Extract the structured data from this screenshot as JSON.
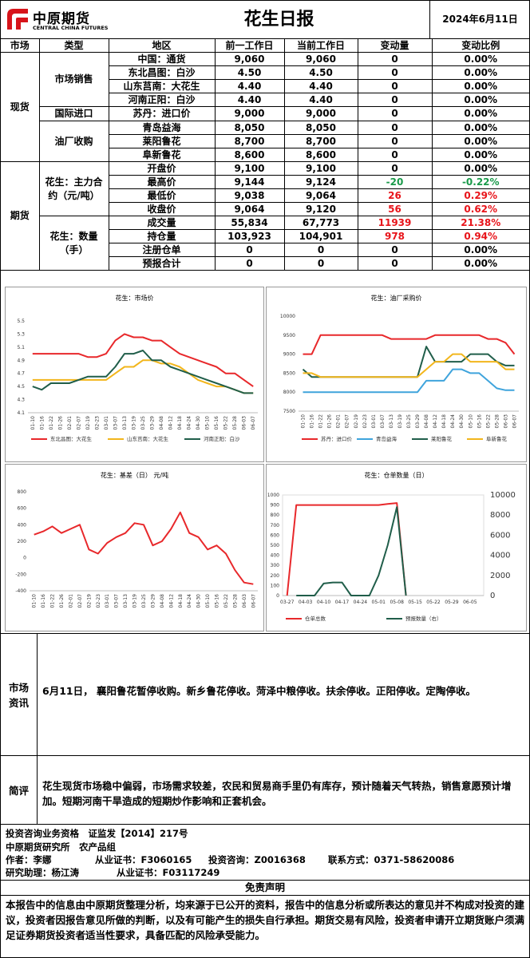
{
  "header": {
    "logo_cn": "中原期货",
    "logo_en": "CENTRAL CHINA FUTURES",
    "title": "花生日报",
    "date": "2024年6月11日"
  },
  "table": {
    "header": [
      "市场",
      "类型",
      "地区",
      "前一工作日",
      "当前工作日",
      "变动量",
      "变动比例"
    ],
    "groups": [
      {
        "market": "现货",
        "types": [
          {
            "type": "市场销售",
            "rows": [
              [
                "中国：通货",
                "9,060",
                "9,060",
                "0",
                "0.00%"
              ],
              [
                "东北昌图：白沙",
                "4.50",
                "4.50",
                "0",
                "0.00%"
              ],
              [
                "山东莒南：大花生",
                "4.40",
                "4.40",
                "0",
                "0.00%"
              ],
              [
                "河南正阳：白沙",
                "4.40",
                "4.40",
                "0",
                "0.00%"
              ]
            ]
          },
          {
            "type": "国际进口",
            "rows": [
              [
                "苏丹：进口价",
                "9,000",
                "9,000",
                "0",
                "0.00%"
              ]
            ]
          },
          {
            "type": "油厂收购",
            "rows": [
              [
                "青岛益海",
                "8,050",
                "8,050",
                "0",
                "0.00%"
              ],
              [
                "莱阳鲁花",
                "8,700",
                "8,700",
                "0",
                "0.00%"
              ],
              [
                "阜新鲁花",
                "8,600",
                "8,600",
                "0",
                "0.00%"
              ]
            ]
          }
        ]
      },
      {
        "market": "期货",
        "types": [
          {
            "type": "花生：主力合约（元/吨）",
            "rows": [
              [
                "开盘价",
                "9,100",
                "9,100",
                "0",
                "0.00%"
              ],
              [
                "最高价",
                "9,144",
                "9,124",
                "-20",
                "-0.22%"
              ],
              [
                "最低价",
                "9,038",
                "9,064",
                "26",
                "0.29%"
              ],
              [
                "收盘价",
                "9,064",
                "9,120",
                "56",
                "0.62%"
              ]
            ]
          },
          {
            "type": "花生：数量（手）",
            "rows": [
              [
                "成交量",
                "55,834",
                "67,773",
                "11939",
                "21.38%"
              ],
              [
                "持仓量",
                "103,923",
                "104,901",
                "978",
                "0.94%"
              ],
              [
                "注册仓单",
                "0",
                "0",
                "0",
                "0.00%"
              ],
              [
                "预报合计",
                "0",
                "0",
                "0",
                "0.00%"
              ]
            ]
          }
        ]
      }
    ]
  },
  "chart_data": [
    {
      "type": "line",
      "title": "花生：市场价",
      "legend": "bottom",
      "categories": [
        "01-10",
        "01-16",
        "01-22",
        "01-26",
        "02-01",
        "02-07",
        "02-19",
        "02-23",
        "03-01",
        "03-07",
        "03-13",
        "03-19",
        "03-25",
        "03-29",
        "04-08",
        "04-12",
        "04-18",
        "04-24",
        "04-30",
        "05-10",
        "05-16",
        "05-22",
        "05-28",
        "06-03",
        "06-07"
      ],
      "ylim": [
        4.1,
        5.5
      ],
      "yticks": [
        4.1,
        4.3,
        4.5,
        4.7,
        4.9,
        5.1,
        5.3,
        5.5
      ],
      "series": [
        {
          "name": "东北昌图：大花生",
          "color": "#e8282b",
          "values": [
            5.0,
            5.0,
            5.0,
            5.0,
            5.0,
            5.0,
            4.95,
            4.95,
            5.0,
            5.2,
            5.3,
            5.25,
            5.25,
            5.2,
            5.2,
            5.1,
            5.0,
            4.95,
            4.9,
            4.85,
            4.8,
            4.7,
            4.7,
            4.6,
            4.5
          ]
        },
        {
          "name": "山东莒南：大花生",
          "color": "#f2b61c",
          "values": [
            4.6,
            4.6,
            4.6,
            4.6,
            4.6,
            4.6,
            4.6,
            4.6,
            4.6,
            4.7,
            4.8,
            4.8,
            4.9,
            4.9,
            4.85,
            4.85,
            4.8,
            4.7,
            4.6,
            4.55,
            4.5,
            4.5,
            4.45,
            4.4,
            4.4
          ]
        },
        {
          "name": "河南正阳：白沙",
          "color": "#205e4a",
          "values": [
            4.5,
            4.45,
            4.55,
            4.55,
            4.55,
            4.6,
            4.65,
            4.65,
            4.65,
            4.8,
            5.0,
            5.0,
            5.05,
            4.9,
            4.9,
            4.8,
            4.75,
            4.7,
            4.65,
            4.6,
            4.55,
            4.5,
            4.45,
            4.4,
            4.4
          ]
        }
      ]
    },
    {
      "type": "line",
      "title": "花生：油厂采购价",
      "legend": "bottom",
      "categories": [
        "01-10",
        "01-16",
        "01-22",
        "01-26",
        "02-01",
        "02-07",
        "02-19",
        "02-23",
        "03-01",
        "03-07",
        "03-13",
        "03-19",
        "03-25",
        "03-29",
        "04-08",
        "04-12",
        "04-18",
        "04-24",
        "04-30",
        "05-10",
        "05-16",
        "05-22",
        "05-28",
        "06-03",
        "06-07"
      ],
      "ylim": [
        7500,
        10000
      ],
      "yticks": [
        7500,
        8000,
        8500,
        9000,
        9500,
        10000
      ],
      "series": [
        {
          "name": "苏丹：进口价",
          "color": "#e8282b",
          "values": [
            9000,
            9000,
            9500,
            9500,
            9500,
            9500,
            9500,
            9500,
            9500,
            9500,
            9400,
            9400,
            9400,
            9400,
            9400,
            9500,
            9500,
            9500,
            9500,
            9500,
            9500,
            9400,
            9400,
            9300,
            9000
          ]
        },
        {
          "name": "青岛益海",
          "color": "#3fa4dc",
          "values": [
            8000,
            8000,
            8000,
            8000,
            8000,
            8000,
            8000,
            8000,
            8000,
            8000,
            8000,
            8000,
            8000,
            8000,
            8300,
            8300,
            8300,
            8600,
            8600,
            8500,
            8500,
            8300,
            8100,
            8050,
            8050
          ]
        },
        {
          "name": "莱阳鲁花",
          "color": "#205e4a",
          "values": [
            8600,
            8400,
            8400,
            8400,
            8400,
            8400,
            8400,
            8400,
            8400,
            8400,
            8400,
            8400,
            8400,
            8400,
            9200,
            8800,
            8800,
            8800,
            8800,
            9000,
            9000,
            9000,
            8800,
            8700,
            8700
          ]
        },
        {
          "name": "阜新鲁花",
          "color": "#f2b61c",
          "values": [
            8500,
            8500,
            8400,
            8400,
            8400,
            8400,
            8400,
            8400,
            8400,
            8400,
            8400,
            8400,
            8400,
            8400,
            8600,
            8800,
            8800,
            9000,
            9000,
            8800,
            8800,
            8800,
            8800,
            8600,
            8600
          ]
        }
      ]
    },
    {
      "type": "line",
      "title": "花生：基差（日） 元/吨",
      "categories": [
        "01-10",
        "01-16",
        "01-22",
        "01-26",
        "02-01",
        "02-07",
        "02-19",
        "02-23",
        "03-01",
        "03-07",
        "03-13",
        "03-19",
        "03-25",
        "03-29",
        "04-08",
        "04-12",
        "04-18",
        "04-24",
        "04-30",
        "05-10",
        "05-16",
        "05-22",
        "05-28",
        "06-03",
        "06-07"
      ],
      "ylim": [
        -400,
        800
      ],
      "yticks": [
        -400,
        -200,
        0,
        200,
        400,
        600,
        800
      ],
      "series": [
        {
          "name": "基差",
          "color": "#e8282b",
          "values": [
            280,
            320,
            380,
            300,
            350,
            400,
            100,
            50,
            180,
            250,
            300,
            420,
            400,
            150,
            200,
            350,
            550,
            300,
            250,
            100,
            150,
            50,
            -150,
            -300,
            -320
          ]
        }
      ]
    },
    {
      "type": "line",
      "title": "花生：仓单数量（日）",
      "legend": "bottom",
      "categories": [
        "03-27",
        null,
        "04-03",
        null,
        "04-10",
        null,
        "04-17",
        null,
        "04-24",
        null,
        "05-01",
        null,
        "05-08",
        null,
        "05-15",
        null,
        "05-22",
        null,
        "05-29",
        null,
        "06-05",
        null
      ],
      "ylim": [
        0,
        1000
      ],
      "yticks": [
        0,
        100,
        200,
        300,
        400,
        500,
        600,
        700,
        800,
        900,
        1000
      ],
      "y2lim": [
        0,
        10000
      ],
      "y2ticks": [
        0,
        2000,
        4000,
        6000,
        8000,
        10000
      ],
      "series": [
        {
          "name": "仓单总数",
          "color": "#e8282b",
          "values": [
            0,
            900,
            900,
            900,
            900,
            900,
            900,
            900,
            900,
            900,
            900,
            910,
            920,
            0,
            null,
            null,
            null,
            null,
            null,
            null,
            null,
            null
          ]
        },
        {
          "name": "预报数量（右）",
          "color": "#205e4a",
          "axis": "y2",
          "values": [
            null,
            0,
            0,
            0,
            1200,
            1300,
            1300,
            0,
            0,
            0,
            2000,
            5000,
            8800,
            0,
            null,
            null,
            null,
            null,
            null,
            null,
            null,
            null
          ]
        }
      ]
    }
  ],
  "news": {
    "label": "市场资讯",
    "text": "6月11日， 襄阳鲁花暂停收购。新乡鲁花停收。菏泽中粮停收。扶余停收。正阳停收。定陶停收。"
  },
  "comment": {
    "label": "简评",
    "text": "花生现货市场稳中偏弱，市场需求较差，农民和贸易商手里仍有库存，预计随着天气转热，销售意愿预计增加。短期河南干旱造成的短期炒作影响和正套机会。"
  },
  "footer": {
    "qualification": "投资咨询业务资格　证监发【2014】217号",
    "dept": "中原期货研究所　农产品组",
    "author": "作者：李娜",
    "cert": "从业证书：F3060165",
    "advisory": "投资咨询：Z0016368",
    "contact": "联系方式：0371-58620086",
    "assistant": "研究助理：杨江涛",
    "assistant_cert": "从业证书：F03117249"
  },
  "disclaimer": {
    "title": "免责声明",
    "text": "本报告中的信息由中原期货整理分析，均来源于已公开的资料，报告中的信息分析或所表达的意见并不构成对投资的建议，投资者因报告意见所做的判断，以及有可能产生的损失自行承担。期货交易有风险，投资者申请开立期货账户须满足证券期货投资者适当性要求，具备匹配的风险承受能力。"
  }
}
